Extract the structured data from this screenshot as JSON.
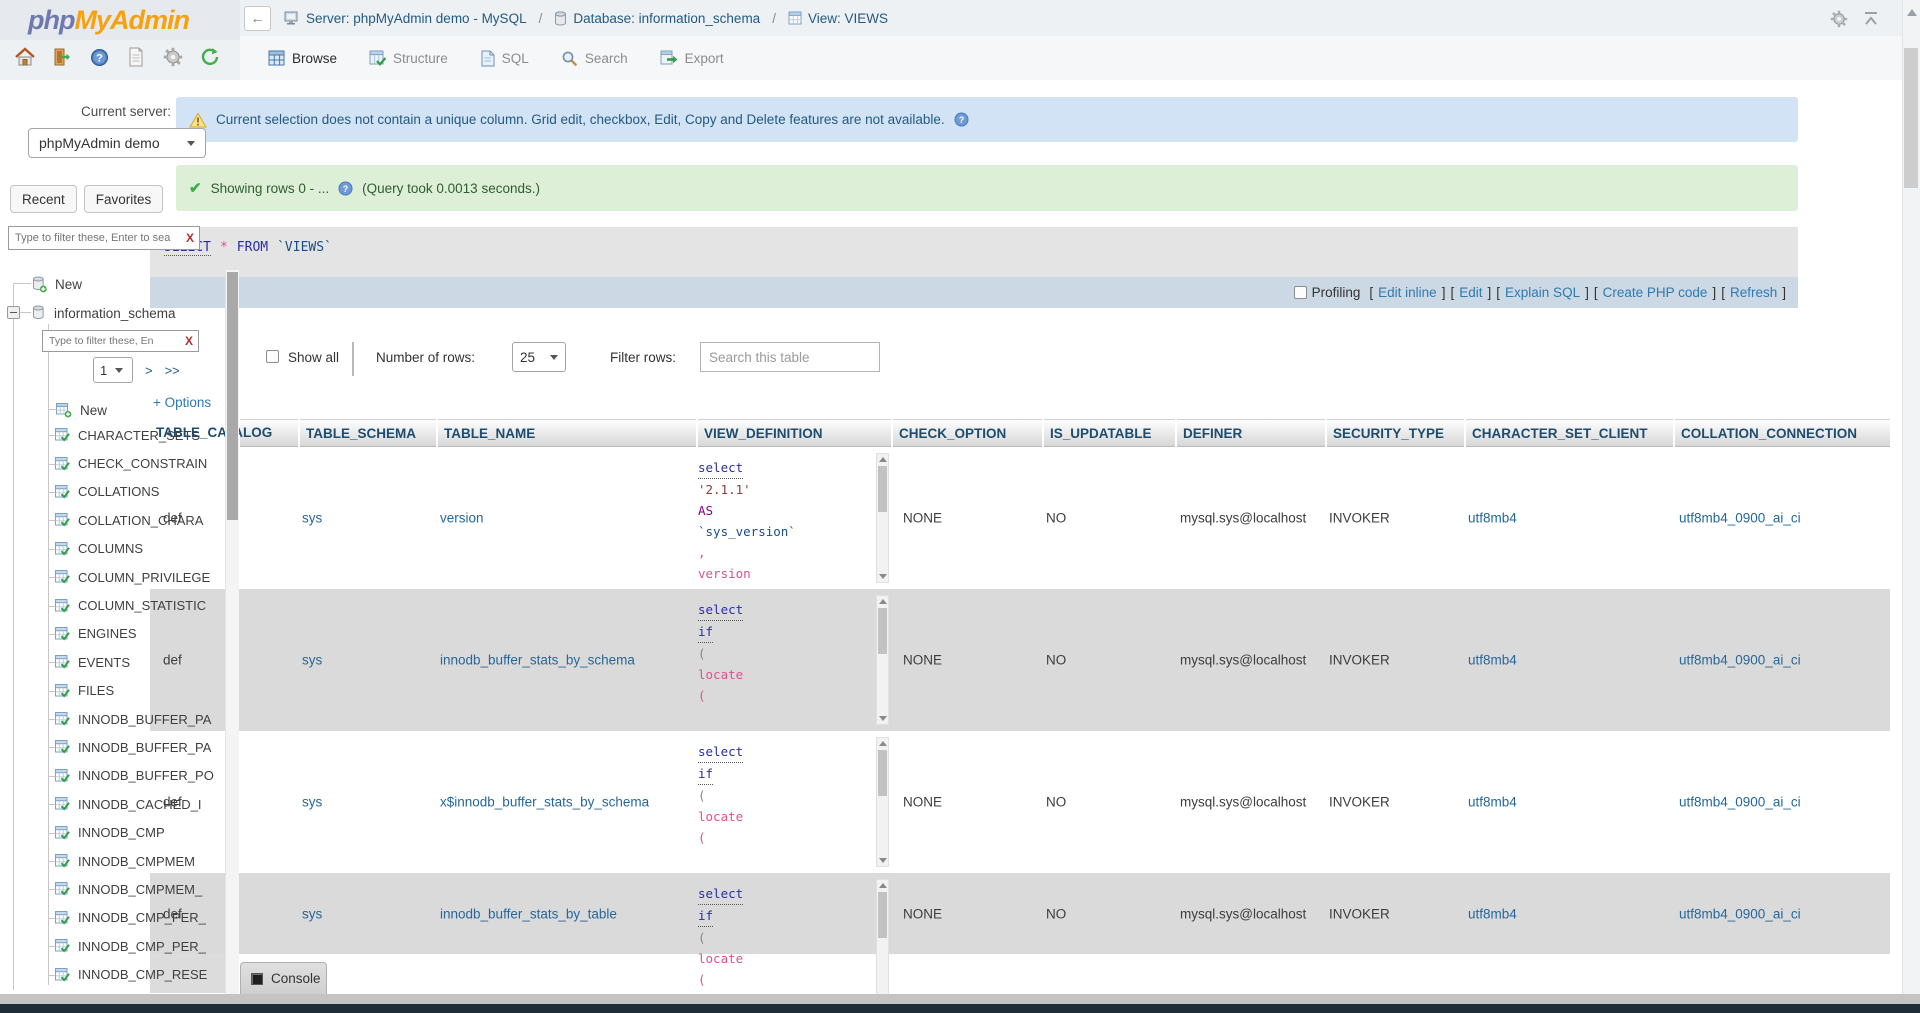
{
  "app": {
    "logo_php": "php",
    "logo_rest": "MyAdmin"
  },
  "header": {
    "breadcrumb": {
      "server": "Server: phpMyAdmin demo - MySQL",
      "database": "Database: information_schema",
      "view": "View: VIEWS",
      "separator": "/"
    },
    "tabs": [
      {
        "label": "Browse"
      },
      {
        "label": "Structure"
      },
      {
        "label": "SQL"
      },
      {
        "label": "Search"
      },
      {
        "label": "Export"
      }
    ]
  },
  "sidebar": {
    "current_server_label": "Current server:",
    "server_select": "phpMyAdmin demo",
    "panel_tabs": [
      "Recent",
      "Favorites"
    ],
    "filter_placeholder": "Type to filter these, Enter to sea",
    "filter_clear": "X",
    "tree": {
      "new_database": "New",
      "database": "information_schema",
      "inner_filter_placeholder": "Type to filter these, En",
      "page": "1",
      "next": ">",
      "last": ">>",
      "new_table": "New",
      "items": [
        "CHARACTER_SETS",
        "CHECK_CONSTRAIN",
        "COLLATIONS",
        "COLLATION_CHARA",
        "COLUMNS",
        "COLUMN_PRIVILEGE",
        "COLUMN_STATISTIC",
        "ENGINES",
        "EVENTS",
        "FILES",
        "INNODB_BUFFER_PA",
        "INNODB_BUFFER_PA",
        "INNODB_BUFFER_PO",
        "INNODB_CACHED_I",
        "INNODB_CMP",
        "INNODB_CMPMEM",
        "INNODB_CMPMEM_",
        "INNODB_CMP_PER_",
        "INNODB_CMP_PER_",
        "INNODB_CMP_RESE"
      ]
    }
  },
  "main": {
    "warning_alert": "Current selection does not contain a unique column. Grid edit, checkbox, Edit, Copy and Delete features are not available.",
    "success_alert": "Showing rows 0 - ...",
    "success_note": "(Query took 0.0013 seconds.)",
    "sql_tokens": [
      {
        "t": "SELECT",
        "c": "kw",
        "u": true
      },
      {
        "t": "*",
        "c": "pink"
      },
      {
        "t": "FROM",
        "c": "kw"
      },
      {
        "t": "`VIEWS`",
        "c": "id"
      }
    ],
    "profiling": {
      "checkbox_label": "Profiling",
      "bracket_open": "[",
      "bracket_close": "]",
      "links": [
        "Edit inline",
        "Edit",
        "Explain SQL",
        "Create PHP code",
        "Refresh"
      ]
    },
    "options_toggle": "+ Options",
    "controls": {
      "show_all": "Show all",
      "rows_label": "Number of rows:",
      "rows_value": "25",
      "filter_label": "Filter rows:",
      "filter_placeholder": "Search this table"
    },
    "table": {
      "columns": [
        "TABLE_CATALOG",
        "TABLE_SCHEMA",
        "TABLE_NAME",
        "VIEW_DEFINITION",
        "CHECK_OPTION",
        "IS_UPDATABLE",
        "DEFINER",
        "SECURITY_TYPE",
        "CHARACTER_SET_CLIENT",
        "COLLATION_CONNECTION"
      ],
      "rows": [
        {
          "catalog": "def",
          "schema": "sys",
          "name": "version",
          "definition": [
            {
              "t": "select",
              "c": "kw",
              "u": true
            },
            {
              "t": "'2.1.1'",
              "c": "str"
            },
            {
              "t": "AS",
              "c": "mag"
            },
            {
              "t": "`sys_version`",
              "c": "id"
            },
            {
              "t": ",",
              "c": "pink"
            },
            {
              "t": "version",
              "c": "pink"
            }
          ],
          "check": "NONE",
          "upd": "NO",
          "definer": "mysql.sys@localhost",
          "sec": "INVOKER",
          "charset": "utf8mb4",
          "collation": "utf8mb4_0900_ai_ci"
        },
        {
          "catalog": "def",
          "schema": "sys",
          "name": "innodb_buffer_stats_by_schema",
          "definition": [
            {
              "t": "select",
              "c": "kw",
              "u": true
            },
            {
              "t": "if",
              "c": "kw",
              "u": true
            },
            {
              "t": "(",
              "c": "par"
            },
            {
              "t": "locate",
              "c": "pink"
            },
            {
              "t": "(",
              "c": "pink"
            }
          ],
          "check": "NONE",
          "upd": "NO",
          "definer": "mysql.sys@localhost",
          "sec": "INVOKER",
          "charset": "utf8mb4",
          "collation": "utf8mb4_0900_ai_ci"
        },
        {
          "catalog": "def",
          "schema": "sys",
          "name": "x$innodb_buffer_stats_by_schema",
          "definition": [
            {
              "t": "select",
              "c": "kw",
              "u": true
            },
            {
              "t": "if",
              "c": "kw",
              "u": true
            },
            {
              "t": "(",
              "c": "par"
            },
            {
              "t": "locate",
              "c": "pink"
            },
            {
              "t": "(",
              "c": "pink"
            }
          ],
          "check": "NONE",
          "upd": "NO",
          "definer": "mysql.sys@localhost",
          "sec": "INVOKER",
          "charset": "utf8mb4",
          "collation": "utf8mb4_0900_ai_ci"
        },
        {
          "catalog": "def",
          "schema": "sys",
          "name": "innodb_buffer_stats_by_table",
          "definition": [
            {
              "t": "select",
              "c": "kw",
              "u": true
            },
            {
              "t": "if",
              "c": "kw",
              "u": true
            },
            {
              "t": "(",
              "c": "par"
            },
            {
              "t": "locate",
              "c": "pink"
            },
            {
              "t": "(",
              "c": "pink"
            }
          ],
          "check": "NONE",
          "upd": "NO",
          "definer": "mysql.sys@localhost",
          "sec": "INVOKER",
          "charset": "utf8mb4",
          "collation": "utf8mb4_0900_ai_ci"
        }
      ]
    },
    "console_label": "Console"
  },
  "colors": {
    "link": "#2d7bb2",
    "breadcrumb": "#235a81",
    "header_text": "#1d4c6e",
    "row_stripe": "#dadada",
    "info_bg": "#d2e3f6",
    "success_bg": "#ddefd7",
    "sql_bg": "#e4e4e4",
    "profiling_bg": "#ccd8e3",
    "bottom_bar": "#1f2d38",
    "logo_php": "#6f79ae",
    "logo_orange": "#f7a10e"
  }
}
